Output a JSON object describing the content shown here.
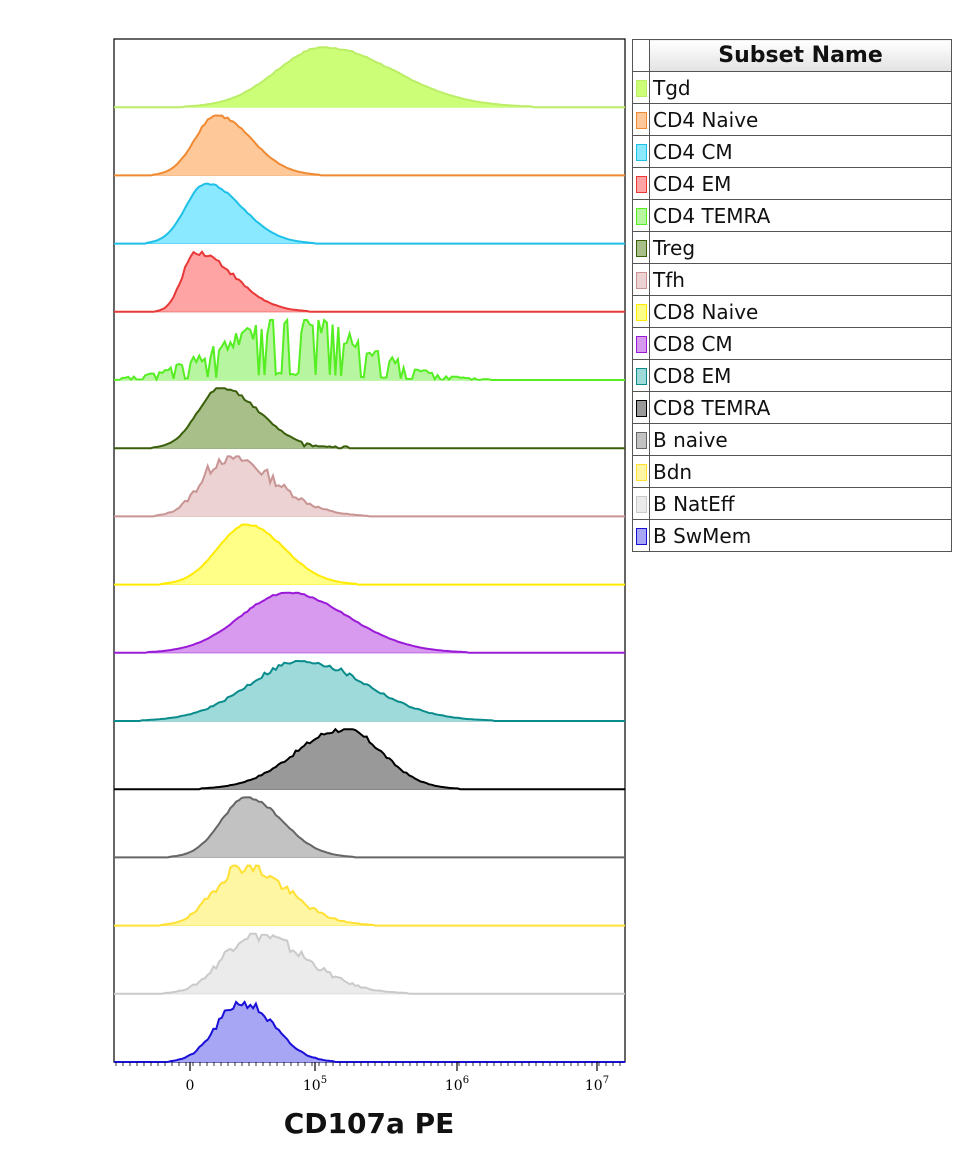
{
  "chart_data": {
    "type": "area",
    "xlabel": "CD107a PE",
    "x_ticks": [
      {
        "base": "0",
        "exp": ""
      },
      {
        "base": "10",
        "exp": "5"
      },
      {
        "base": "10",
        "exp": "6"
      },
      {
        "base": "10",
        "exp": "7"
      }
    ],
    "legend_title": "Subset Name",
    "series": [
      {
        "name": "Tgd",
        "color": "#ccff77",
        "line": "#bbee66",
        "peak_x": 0.41,
        "width": 0.115,
        "skew": 0.05,
        "noise": 0.03,
        "sparse": false,
        "outlier": 0.0
      },
      {
        "name": "CD4 Naive",
        "color": "#ffc898",
        "line": "#f08a32",
        "peak_x": 0.2,
        "width": 0.055,
        "skew": 0.06,
        "noise": 0.05,
        "sparse": false,
        "outlier": 0.0
      },
      {
        "name": "CD4 CM",
        "color": "#8ae8ff",
        "line": "#1ec0e8",
        "peak_x": 0.18,
        "width": 0.055,
        "skew": 0.07,
        "noise": 0.03,
        "sparse": false,
        "outlier": 0.0
      },
      {
        "name": "CD4 EM",
        "color": "#ffa4a4",
        "line": "#e83838",
        "peak_x": 0.16,
        "width": 0.05,
        "skew": 0.12,
        "noise": 0.1,
        "sparse": false,
        "outlier": 0.0
      },
      {
        "name": "CD4 TEMRA",
        "color": "#b8f5a0",
        "line": "#55ee22",
        "peak_x": 0.35,
        "width": 0.13,
        "skew": 0.0,
        "noise": 0.45,
        "sparse": true,
        "outlier": 0.0
      },
      {
        "name": "Treg",
        "color": "#a8bf8a",
        "line": "#3a5f0b",
        "peak_x": 0.21,
        "width": 0.06,
        "skew": 0.06,
        "noise": 0.06,
        "sparse": false,
        "outlier": 0.6
      },
      {
        "name": "Tfh",
        "color": "#ecd2d2",
        "line": "#c89494",
        "peak_x": 0.22,
        "width": 0.07,
        "skew": 0.08,
        "noise": 0.28,
        "sparse": false,
        "outlier": 0.0
      },
      {
        "name": "CD8 Naive",
        "color": "#ffff88",
        "line": "#ffea00",
        "peak_x": 0.26,
        "width": 0.065,
        "skew": 0.03,
        "noise": 0.03,
        "sparse": false,
        "outlier": 0.0
      },
      {
        "name": "CD8 CM",
        "color": "#d89aee",
        "line": "#9a1ad8",
        "peak_x": 0.34,
        "width": 0.105,
        "skew": 0.03,
        "noise": 0.03,
        "sparse": false,
        "outlier": 0.0
      },
      {
        "name": "CD8 EM",
        "color": "#9edada",
        "line": "#0a8c8c",
        "peak_x": 0.37,
        "width": 0.115,
        "skew": 0.02,
        "noise": 0.1,
        "sparse": false,
        "outlier": 0.0
      },
      {
        "name": "CD8 TEMRA",
        "color": "#999999",
        "line": "#000000",
        "peak_x": 0.45,
        "width": 0.085,
        "skew": -0.03,
        "noise": 0.1,
        "sparse": false,
        "outlier": 0.0
      },
      {
        "name": "B naive",
        "color": "#c2c2c2",
        "line": "#666666",
        "peak_x": 0.26,
        "width": 0.06,
        "skew": 0.04,
        "noise": 0.05,
        "sparse": false,
        "outlier": 0.0
      },
      {
        "name": "Bdn",
        "color": "#fff6a4",
        "line": "#ffe033",
        "peak_x": 0.25,
        "width": 0.07,
        "skew": 0.06,
        "noise": 0.25,
        "sparse": false,
        "outlier": 0.0
      },
      {
        "name": "B NatEff",
        "color": "#ebebeb",
        "line": "#cacaca",
        "peak_x": 0.27,
        "width": 0.08,
        "skew": 0.07,
        "noise": 0.25,
        "sparse": false,
        "outlier": 0.0
      },
      {
        "name": "B SwMem",
        "color": "#a6a6f5",
        "line": "#1a10d8",
        "peak_x": 0.25,
        "width": 0.055,
        "skew": 0.03,
        "noise": 0.18,
        "sparse": false,
        "outlier": 0.0
      }
    ]
  }
}
